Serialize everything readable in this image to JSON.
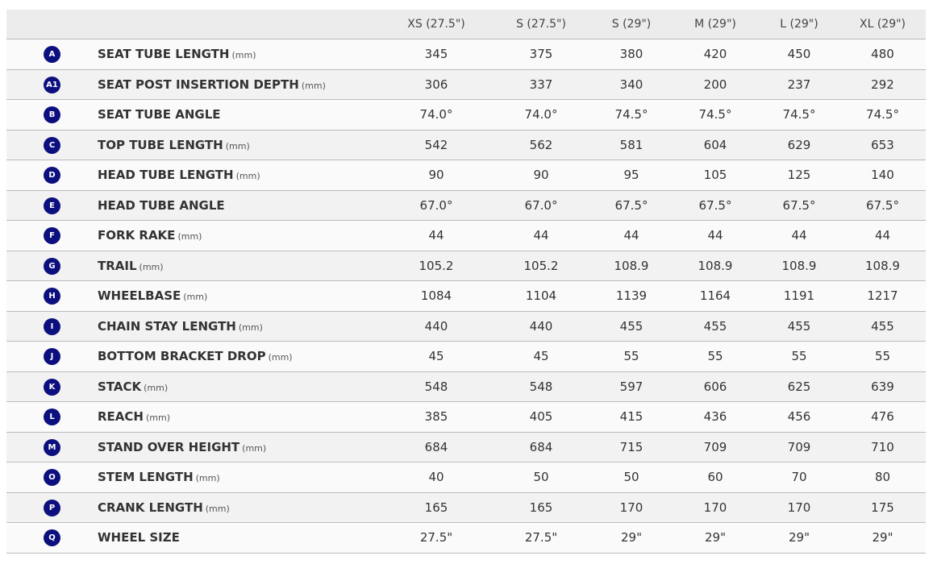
{
  "header": [
    "XS (27.5\")",
    "S (27.5\")",
    "S (29\")",
    "M (29\")",
    "L (29\")",
    "XL (29\")"
  ],
  "badge_color": "#0c0f7e",
  "rows": [
    {
      "badge": "A",
      "label": "SEAT TUBE LENGTH",
      "unit": "(mm)",
      "values": [
        "345",
        "375",
        "380",
        "420",
        "450",
        "480"
      ]
    },
    {
      "badge": "A1",
      "label": "SEAT POST INSERTION DEPTH",
      "unit": "(mm)",
      "values": [
        "306",
        "337",
        "340",
        "200",
        "237",
        "292"
      ]
    },
    {
      "badge": "B",
      "label": "SEAT TUBE ANGLE",
      "unit": "",
      "values": [
        "74.0°",
        "74.0°",
        "74.5°",
        "74.5°",
        "74.5°",
        "74.5°"
      ]
    },
    {
      "badge": "C",
      "label": "TOP TUBE LENGTH",
      "unit": "(mm)",
      "values": [
        "542",
        "562",
        "581",
        "604",
        "629",
        "653"
      ]
    },
    {
      "badge": "D",
      "label": "HEAD TUBE LENGTH",
      "unit": "(mm)",
      "values": [
        "90",
        "90",
        "95",
        "105",
        "125",
        "140"
      ]
    },
    {
      "badge": "E",
      "label": "HEAD TUBE ANGLE",
      "unit": "",
      "values": [
        "67.0°",
        "67.0°",
        "67.5°",
        "67.5°",
        "67.5°",
        "67.5°"
      ]
    },
    {
      "badge": "F",
      "label": "FORK RAKE",
      "unit": "(mm)",
      "values": [
        "44",
        "44",
        "44",
        "44",
        "44",
        "44"
      ]
    },
    {
      "badge": "G",
      "label": "TRAIL",
      "unit": "(mm)",
      "values": [
        "105.2",
        "105.2",
        "108.9",
        "108.9",
        "108.9",
        "108.9"
      ]
    },
    {
      "badge": "H",
      "label": "WHEELBASE",
      "unit": "(mm)",
      "values": [
        "1084",
        "1104",
        "1139",
        "1164",
        "1191",
        "1217"
      ]
    },
    {
      "badge": "I",
      "label": "CHAIN STAY LENGTH",
      "unit": "(mm)",
      "values": [
        "440",
        "440",
        "455",
        "455",
        "455",
        "455"
      ]
    },
    {
      "badge": "J",
      "label": "BOTTOM BRACKET DROP",
      "unit": "(mm)",
      "values": [
        "45",
        "45",
        "55",
        "55",
        "55",
        "55"
      ]
    },
    {
      "badge": "K",
      "label": "STACK",
      "unit": "(mm)",
      "values": [
        "548",
        "548",
        "597",
        "606",
        "625",
        "639"
      ]
    },
    {
      "badge": "L",
      "label": "REACH",
      "unit": "(mm)",
      "values": [
        "385",
        "405",
        "415",
        "436",
        "456",
        "476"
      ]
    },
    {
      "badge": "M",
      "label": "STAND OVER HEIGHT",
      "unit": "(mm)",
      "values": [
        "684",
        "684",
        "715",
        "709",
        "709",
        "710"
      ]
    },
    {
      "badge": "O",
      "label": "STEM LENGTH",
      "unit": "(mm)",
      "values": [
        "40",
        "50",
        "50",
        "60",
        "70",
        "80"
      ]
    },
    {
      "badge": "P",
      "label": "CRANK LENGTH",
      "unit": "(mm)",
      "values": [
        "165",
        "165",
        "170",
        "170",
        "170",
        "175"
      ]
    },
    {
      "badge": "Q",
      "label": "WHEEL SIZE",
      "unit": "",
      "values": [
        "27.5\"",
        "27.5\"",
        "29\"",
        "29\"",
        "29\"",
        "29\""
      ]
    }
  ]
}
